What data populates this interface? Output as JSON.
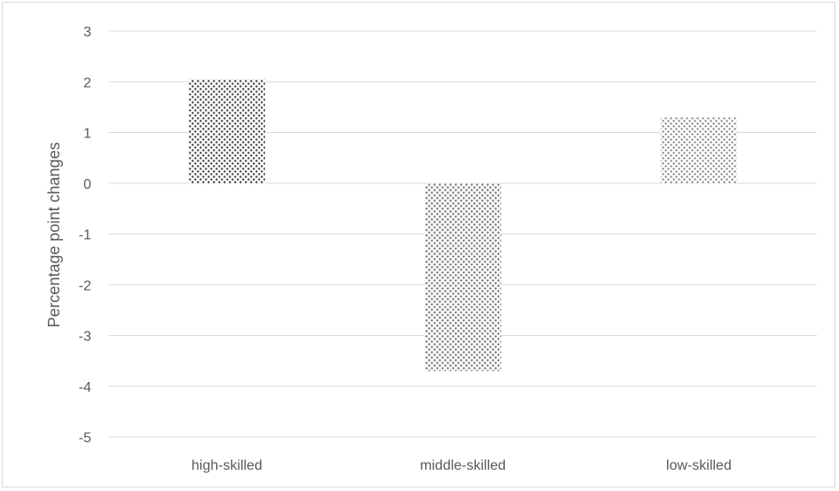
{
  "chart_data": {
    "type": "bar",
    "title": "",
    "xlabel": "",
    "ylabel": "Percentage point changes",
    "categories": [
      "high-skilled",
      "middle-skilled",
      "low-skilled"
    ],
    "values": [
      2.05,
      -3.7,
      1.3
    ],
    "ylim": [
      -5,
      3
    ],
    "yticks": [
      3,
      2,
      1,
      0,
      -1,
      -2,
      -3,
      -4,
      -5
    ],
    "ytick_labels": [
      "3",
      "2",
      "1",
      "0",
      "-1",
      "-2",
      "-3",
      "-4",
      "-5"
    ],
    "grid": true,
    "legend": "none",
    "colors": {
      "dot_dense": "#3a3a3a",
      "dot_medium": "#6e6e6e",
      "dot_light": "#7a7a7a",
      "grid": "#d9d9d9",
      "text": "#595959"
    }
  }
}
